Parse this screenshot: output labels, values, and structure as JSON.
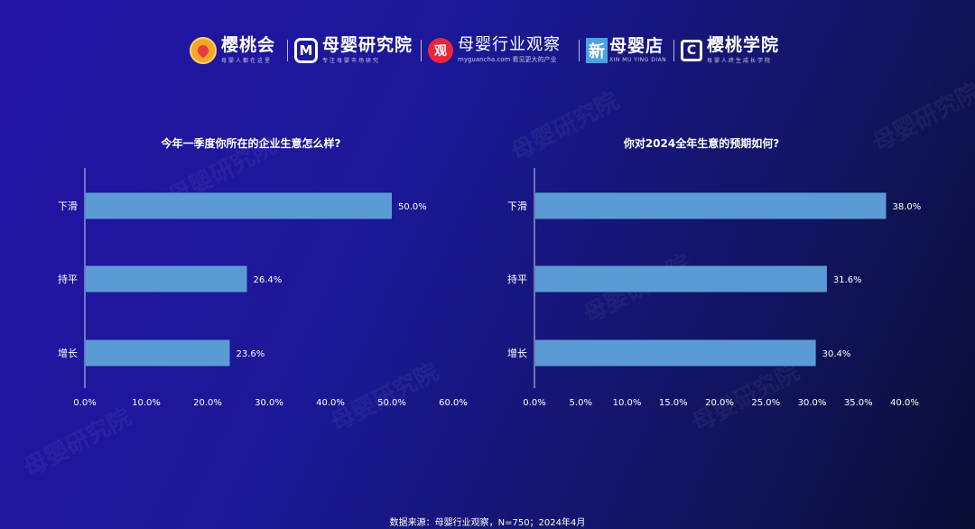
{
  "logos": [
    {
      "name": "樱桃会",
      "sub": "母婴人都在这里",
      "icon": "peach-icon"
    },
    {
      "name": "母婴研究院",
      "sub": "专注母婴市场研究",
      "icon": "m-badge-icon",
      "icon_char": "M"
    },
    {
      "name": "母婴行业观察",
      "sub": "myguancha.com 看见更大的产业",
      "icon": "guan-badge-icon",
      "icon_char": "观"
    },
    {
      "name": "母婴店",
      "sub": "XIN MU YING DIAN",
      "icon": "xin-badge-icon",
      "icon_char": "新"
    },
    {
      "name": "樱桃学院",
      "sub": "母婴人终生成长学院",
      "icon": "c-badge-icon",
      "icon_char": "C"
    }
  ],
  "watermark_text": "母婴研究院",
  "source": "数据来源：母婴行业观察，N=750；2024年4月",
  "colors": {
    "bar": "#5b9bd5",
    "text": "#ffffff",
    "axis": "#c9cde8"
  },
  "chart_data": [
    {
      "type": "bar",
      "orientation": "horizontal",
      "title": "今年一季度你所在的企业生意怎么样?",
      "categories": [
        "下滑",
        "持平",
        "增长"
      ],
      "values": [
        50.0,
        26.4,
        23.6
      ],
      "value_labels": [
        "50.0%",
        "26.4%",
        "23.6%"
      ],
      "xlim": [
        0,
        60
      ],
      "xticks": [
        "0.0%",
        "10.0%",
        "20.0%",
        "30.0%",
        "40.0%",
        "50.0%",
        "60.0%"
      ],
      "grid": false
    },
    {
      "type": "bar",
      "orientation": "horizontal",
      "title": "你对2024全年生意的预期如何?",
      "categories": [
        "下滑",
        "持平",
        "增长"
      ],
      "values": [
        38.0,
        31.6,
        30.4
      ],
      "value_labels": [
        "38.0%",
        "31.6%",
        "30.4%"
      ],
      "xlim": [
        0,
        40
      ],
      "xticks": [
        "0.0%",
        "5.0%",
        "10.0%",
        "15.0%",
        "20.0%",
        "25.0%",
        "30.0%",
        "35.0%",
        "40.0%"
      ],
      "grid": false
    }
  ]
}
